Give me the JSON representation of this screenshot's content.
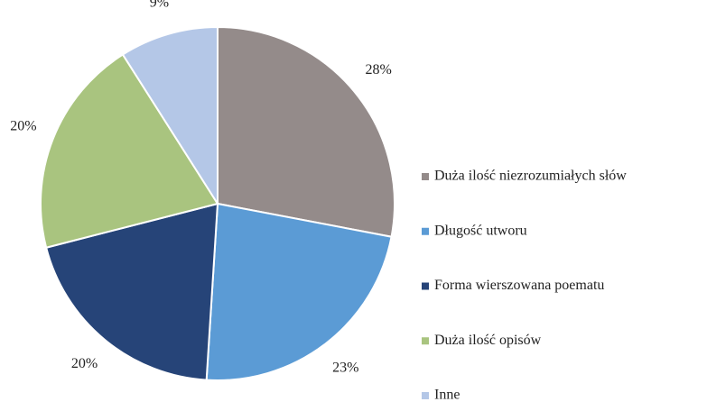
{
  "chart_data": {
    "type": "pie",
    "categories": [
      "Duża ilość niezrozumiałych słów",
      "Długość utworu",
      "Forma wierszowana poematu",
      "Duża ilość opisów",
      "Inne"
    ],
    "values": [
      28,
      23,
      20,
      20,
      9
    ],
    "value_labels": [
      "28%",
      "23%",
      "20%",
      "20%",
      "9%"
    ],
    "colors": [
      "#948b8a",
      "#5b9bd5",
      "#264478",
      "#a9c47f",
      "#b4c7e7"
    ],
    "legend": "right"
  }
}
